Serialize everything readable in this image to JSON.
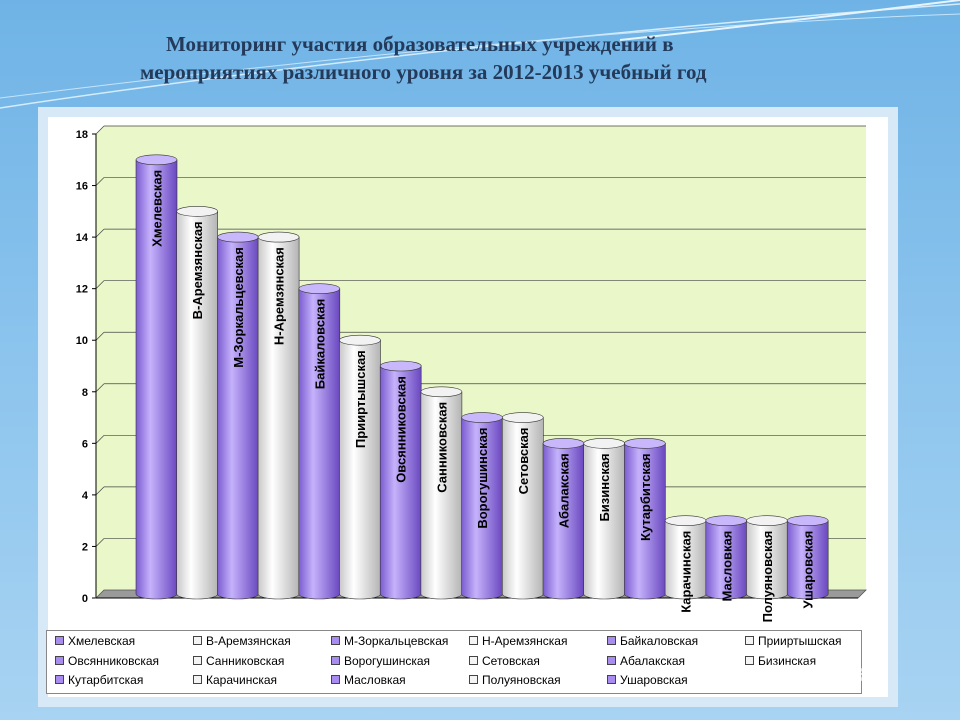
{
  "title": {
    "line1": "Мониторинг участия образовательных учреждений в",
    "line2": "мероприятиях различного уровня за 2012-2013 учебный год"
  },
  "chart_data": {
    "type": "bar",
    "categories": [
      "Хмелевская",
      "В-Аремзянская",
      "М-Зоркальцевская",
      "Н-Аремзянская",
      "Байкаловская",
      "Прииртышская",
      "Овсянниковская",
      "Санниковская",
      "Ворогушинская",
      "Сетовская",
      "Абалакская",
      "Бизинская",
      "Кутарбитская",
      "Карачинская",
      "Масловкая",
      "Полуяновская",
      "Ушаровская"
    ],
    "values": [
      17,
      15,
      14,
      14,
      12,
      10,
      9,
      8,
      7,
      7,
      6,
      6,
      6,
      3,
      3,
      3,
      3
    ],
    "colors": [
      "#a98cf0",
      "#f4f4f4",
      "#a98cf0",
      "#f4f4f4",
      "#a98cf0",
      "#f4f4f4",
      "#a98cf0",
      "#f4f4f4",
      "#a98cf0",
      "#f4f4f4",
      "#a98cf0",
      "#f4f4f4",
      "#a98cf0",
      "#f4f4f4",
      "#a98cf0",
      "#f4f4f4",
      "#a98cf0"
    ],
    "ylim": [
      0,
      18
    ],
    "yticks": [
      "0",
      "2",
      "4",
      "6",
      "8",
      "10",
      "12",
      "14",
      "16",
      "18"
    ],
    "grid": true,
    "plot_background": "#e9f7c9",
    "legend_position": "bottom"
  },
  "watermark": "MyShared"
}
